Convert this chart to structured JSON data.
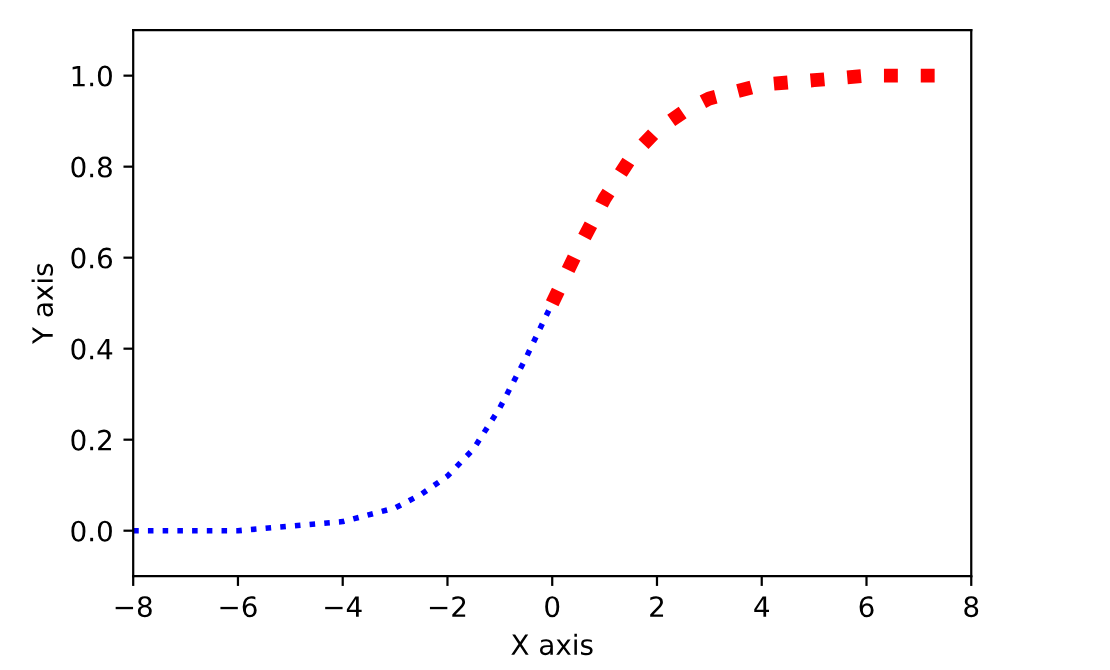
{
  "chart_data": {
    "type": "line",
    "xlabel": "X axis",
    "ylabel": "Y axis",
    "series": [
      {
        "color": "#0000ff",
        "line_style": "dotted",
        "x": [
          -8,
          -7,
          -6,
          -5,
          -4,
          -3,
          -2.5,
          -2,
          -1.5,
          -1,
          -0.5,
          0
        ],
        "values": [
          0.0,
          0.0,
          0.0,
          0.01,
          0.02,
          0.05,
          0.08,
          0.12,
          0.18,
          0.27,
          0.38,
          0.5
        ]
      },
      {
        "color": "#ff0000",
        "line_style": "dotted",
        "x": [
          0,
          0.5,
          1,
          1.5,
          2,
          2.5,
          3,
          4,
          5,
          6,
          7.5
        ],
        "values": [
          0.5,
          0.62,
          0.73,
          0.82,
          0.88,
          0.92,
          0.95,
          0.98,
          0.99,
          1.0,
          1.0
        ]
      }
    ],
    "xlim": [
      -8,
      8
    ],
    "ylim": [
      -0.1,
      1.1
    ],
    "xticks": [
      {
        "value": -8,
        "label": "−8"
      },
      {
        "value": -6,
        "label": "−6"
      },
      {
        "value": -4,
        "label": "−4"
      },
      {
        "value": -2,
        "label": "−2"
      },
      0,
      2,
      4,
      6,
      8
    ],
    "yticks": [
      {
        "value": 0,
        "label": "0.0"
      },
      0.2,
      0.4,
      0.6,
      0.8,
      {
        "value": 1,
        "label": "1.0"
      }
    ],
    "grid": false,
    "legend": false
  }
}
